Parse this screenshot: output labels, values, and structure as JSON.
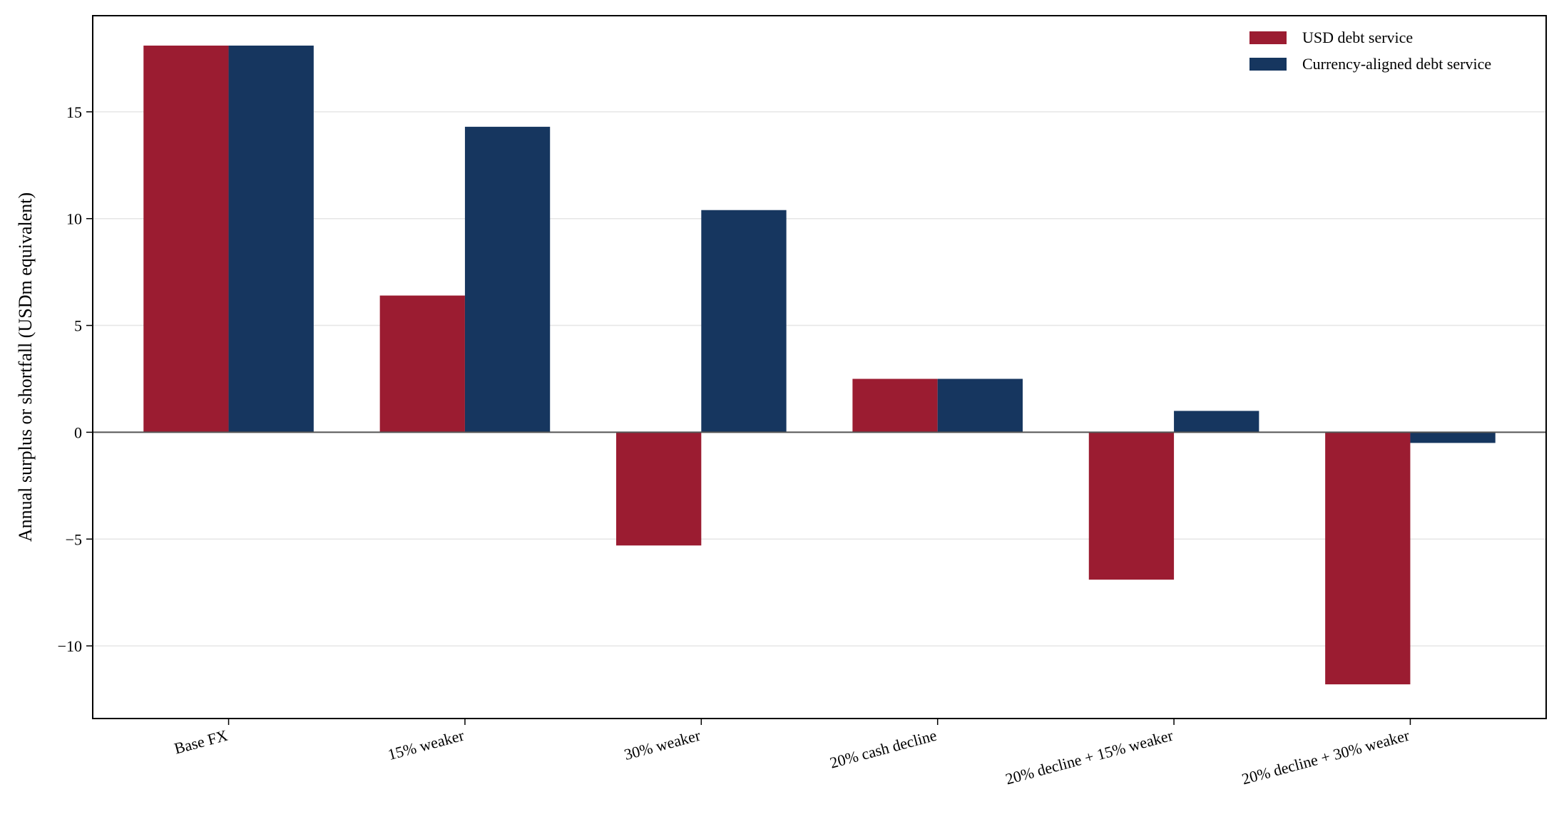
{
  "chart_data": {
    "type": "bar",
    "categories": [
      "Base FX",
      "15% weaker",
      "30% weaker",
      "20% cash decline",
      "20% decline + 15% weaker",
      "20% decline + 30% weaker"
    ],
    "series": [
      {
        "name": "USD debt service",
        "color": "#9b1c31",
        "values": [
          18.1,
          6.4,
          -5.3,
          2.5,
          -6.9,
          -11.8
        ]
      },
      {
        "name": "Currency-aligned debt service",
        "color": "#16365f",
        "values": [
          18.1,
          14.3,
          10.4,
          2.5,
          1.0,
          -0.5
        ]
      }
    ],
    "title": "",
    "xlabel": "",
    "ylabel": "Annual surplus or shortfall (USDm equivalent)",
    "ylim": [
      -13.4,
      19.5
    ],
    "yticks": [
      -10,
      -5,
      0,
      5,
      10,
      15
    ],
    "ytick_labels": [
      "−10",
      "−5",
      "0",
      "5",
      "10",
      "15"
    ],
    "grid": "horizontal",
    "legend": "top-right",
    "zero_line": true
  }
}
